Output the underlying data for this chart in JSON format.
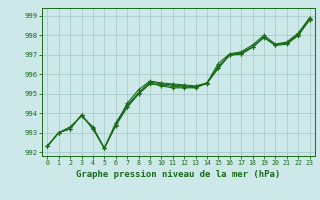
{
  "title": "Graphe pression niveau de la mer (hPa)",
  "bg_color": "#cce8e8",
  "grid_color": "#aacccc",
  "line_color": "#1a6b1a",
  "marker_color": "#1a6b1a",
  "xlim": [
    -0.5,
    23.5
  ],
  "ylim": [
    991.8,
    999.4
  ],
  "yticks": [
    992,
    993,
    994,
    995,
    996,
    997,
    998,
    999
  ],
  "xticks": [
    0,
    1,
    2,
    3,
    4,
    5,
    6,
    7,
    8,
    9,
    10,
    11,
    12,
    13,
    14,
    15,
    16,
    17,
    18,
    19,
    20,
    21,
    22,
    23
  ],
  "series": [
    [
      992.3,
      993.0,
      993.2,
      993.9,
      993.2,
      992.2,
      993.4,
      994.3,
      995.0,
      995.55,
      995.4,
      995.3,
      995.3,
      995.3,
      995.55,
      996.3,
      997.0,
      997.1,
      997.4,
      997.9,
      997.5,
      997.6,
      998.0,
      998.8
    ],
    [
      992.3,
      993.0,
      993.2,
      993.9,
      993.2,
      992.2,
      993.4,
      994.5,
      995.2,
      995.65,
      995.55,
      995.5,
      995.45,
      995.4,
      995.55,
      996.55,
      997.05,
      997.15,
      997.5,
      998.0,
      997.55,
      997.65,
      998.1,
      998.9
    ],
    [
      992.3,
      993.0,
      993.3,
      993.85,
      993.3,
      992.2,
      993.5,
      994.4,
      995.05,
      995.6,
      995.5,
      995.45,
      995.4,
      995.35,
      995.55,
      996.4,
      997.0,
      997.05,
      997.4,
      997.9,
      997.5,
      997.6,
      998.05,
      998.85
    ],
    [
      992.3,
      993.0,
      993.2,
      993.9,
      993.25,
      992.2,
      993.35,
      994.3,
      994.98,
      995.5,
      995.44,
      995.38,
      995.34,
      995.32,
      995.52,
      996.32,
      996.98,
      997.02,
      997.38,
      997.88,
      997.48,
      997.54,
      997.98,
      998.78
    ]
  ]
}
